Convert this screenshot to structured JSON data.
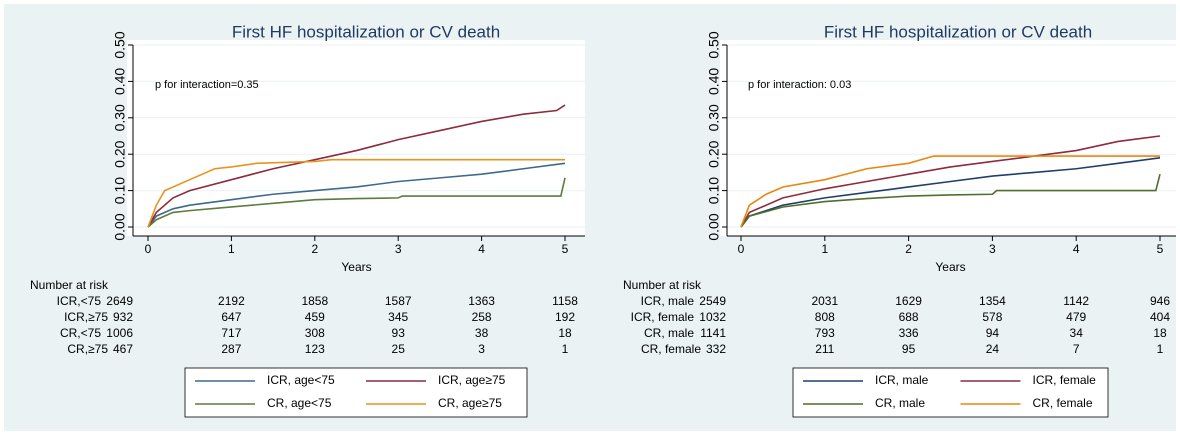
{
  "chart_data": [
    {
      "type": "line",
      "title": "First HF hospitalization or CV death",
      "x_label": "Years",
      "annotation": "p for interaction=0.35",
      "xlim": [
        0,
        5
      ],
      "xticks": [
        0,
        1,
        2,
        3,
        4,
        5
      ],
      "ylim": [
        0,
        0.5
      ],
      "yticks": [
        {
          "value": 0,
          "label": "0.00"
        },
        {
          "value": 0.1,
          "label": "0.10"
        },
        {
          "value": 0.2,
          "label": "0.20"
        },
        {
          "value": 0.3,
          "label": "0.30"
        },
        {
          "value": 0.4,
          "label": "0.40"
        },
        {
          "value": 0.5,
          "label": "0.50"
        }
      ],
      "grid": true,
      "series": [
        {
          "name": "ICR, age<75",
          "color": "#3d6a8c",
          "x": [
            0,
            0.1,
            0.3,
            0.5,
            1,
            1.5,
            2,
            2.5,
            3,
            3.5,
            4,
            4.5,
            5
          ],
          "values": [
            0,
            0.03,
            0.05,
            0.06,
            0.075,
            0.09,
            0.1,
            0.11,
            0.125,
            0.135,
            0.145,
            0.16,
            0.175
          ]
        },
        {
          "name": "ICR, age≥75",
          "color": "#8c2c3e",
          "x": [
            0,
            0.1,
            0.3,
            0.5,
            1,
            1.5,
            2,
            2.5,
            3,
            3.5,
            4,
            4.5,
            4.9,
            5
          ],
          "values": [
            0,
            0.04,
            0.08,
            0.1,
            0.13,
            0.16,
            0.185,
            0.21,
            0.24,
            0.265,
            0.29,
            0.31,
            0.32,
            0.335
          ]
        },
        {
          "name": "CR, age<75",
          "color": "#5d7b3a",
          "x": [
            0,
            0.1,
            0.3,
            0.5,
            1,
            1.5,
            2,
            2.5,
            3,
            3.05,
            4,
            4.95,
            5
          ],
          "values": [
            0,
            0.02,
            0.04,
            0.045,
            0.055,
            0.065,
            0.075,
            0.078,
            0.08,
            0.085,
            0.085,
            0.085,
            0.135
          ]
        },
        {
          "name": "CR, age≥75",
          "color": "#e8931e",
          "x": [
            0,
            0.1,
            0.2,
            0.5,
            0.8,
            1,
            1.3,
            2,
            2.2,
            5
          ],
          "values": [
            0,
            0.06,
            0.1,
            0.13,
            0.16,
            0.165,
            0.175,
            0.18,
            0.185,
            0.185
          ]
        }
      ],
      "risk_table": {
        "title": "Number at risk",
        "rows": [
          {
            "label": "ICR,<75",
            "values": [
              2649,
              2192,
              1858,
              1587,
              1363,
              1158
            ]
          },
          {
            "label": "ICR,≥75",
            "values": [
              932,
              647,
              459,
              345,
              258,
              192
            ]
          },
          {
            "label": "CR,<75",
            "values": [
              1006,
              717,
              308,
              93,
              38,
              18
            ]
          },
          {
            "label": "CR,≥75",
            "values": [
              467,
              287,
              123,
              25,
              3,
              1
            ]
          }
        ]
      }
    },
    {
      "type": "line",
      "title": "First HF hospitalization or CV death",
      "x_label": "Years",
      "annotation": "p for interaction: 0.03",
      "xlim": [
        0,
        5
      ],
      "xticks": [
        0,
        1,
        2,
        3,
        4,
        5
      ],
      "ylim": [
        0,
        0.5
      ],
      "yticks": [
        {
          "value": 0,
          "label": "0.00"
        },
        {
          "value": 0.1,
          "label": "0.10"
        },
        {
          "value": 0.2,
          "label": "0.20"
        },
        {
          "value": 0.3,
          "label": "0.30"
        },
        {
          "value": 0.4,
          "label": "0.40"
        },
        {
          "value": 0.5,
          "label": "0.50"
        }
      ],
      "grid": true,
      "series": [
        {
          "name": "ICR, male",
          "color": "#1f3f6b",
          "x": [
            0,
            0.1,
            0.5,
            1,
            1.5,
            2,
            2.5,
            3,
            3.5,
            4,
            4.5,
            5
          ],
          "values": [
            0,
            0.03,
            0.06,
            0.08,
            0.095,
            0.11,
            0.125,
            0.14,
            0.15,
            0.16,
            0.175,
            0.19
          ]
        },
        {
          "name": "ICR, female",
          "color": "#8c2c3e",
          "x": [
            0,
            0.1,
            0.5,
            1,
            1.5,
            2,
            2.5,
            3,
            3.5,
            4,
            4.5,
            5
          ],
          "values": [
            0,
            0.04,
            0.08,
            0.105,
            0.125,
            0.145,
            0.165,
            0.18,
            0.195,
            0.21,
            0.235,
            0.25
          ]
        },
        {
          "name": "CR, male",
          "color": "#4f6f2c",
          "x": [
            0,
            0.1,
            0.5,
            1,
            1.5,
            2,
            2.5,
            3,
            3.05,
            4.95,
            5
          ],
          "values": [
            0,
            0.03,
            0.055,
            0.07,
            0.078,
            0.085,
            0.088,
            0.09,
            0.1,
            0.1,
            0.145
          ]
        },
        {
          "name": "CR, female",
          "color": "#e8870e",
          "x": [
            0,
            0.1,
            0.3,
            0.5,
            1,
            1.5,
            2,
            2.3,
            3,
            5
          ],
          "values": [
            0,
            0.06,
            0.09,
            0.11,
            0.13,
            0.16,
            0.175,
            0.195,
            0.195,
            0.195
          ]
        }
      ],
      "risk_table": {
        "title": "Number at risk",
        "rows": [
          {
            "label": "ICR, male",
            "values": [
              2549,
              2031,
              1629,
              1354,
              1142,
              946
            ]
          },
          {
            "label": "ICR, female",
            "values": [
              1032,
              808,
              688,
              578,
              479,
              404
            ]
          },
          {
            "label": "CR, male",
            "values": [
              1141,
              793,
              336,
              94,
              34,
              18
            ]
          },
          {
            "label": "CR, female",
            "values": [
              332,
              211,
              95,
              24,
              7,
              1
            ]
          }
        ]
      }
    }
  ]
}
